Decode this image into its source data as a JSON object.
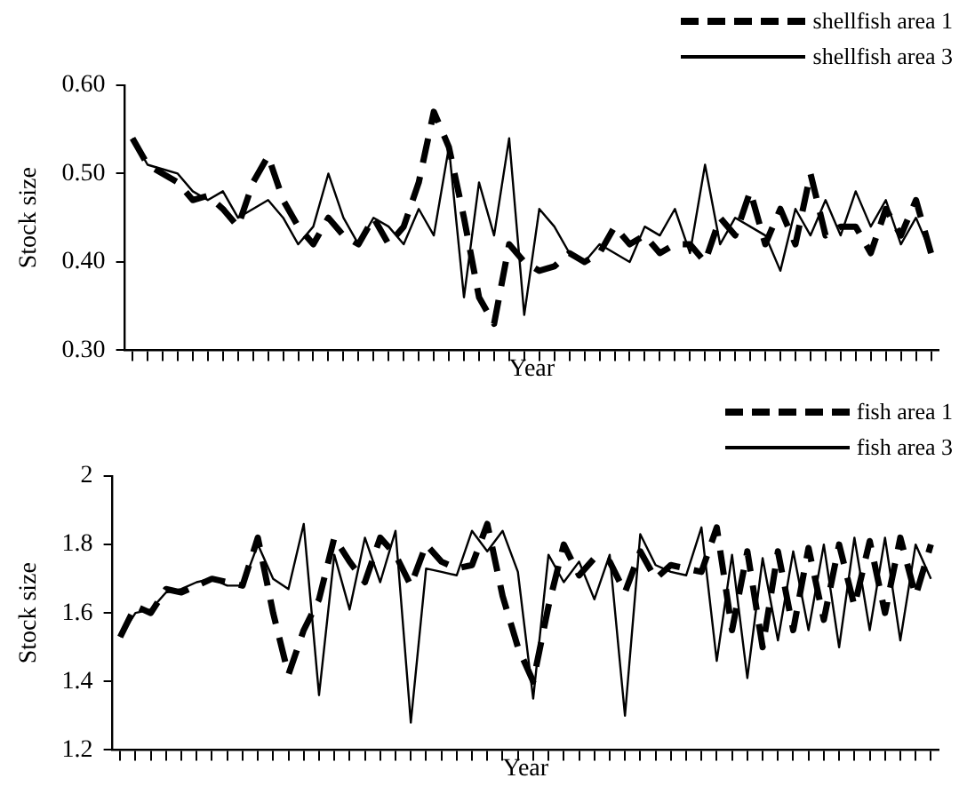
{
  "chart_data": [
    {
      "type": "line",
      "xlabel": "Year",
      "ylabel": "Stock size",
      "categories": [
        null,
        null,
        null,
        null,
        null,
        null,
        null,
        null,
        null,
        null,
        null,
        null,
        null,
        null,
        null,
        null,
        null,
        null,
        null,
        null,
        null,
        null,
        null,
        null,
        null,
        null,
        null,
        null,
        null,
        null,
        null,
        null,
        null,
        null,
        null,
        null,
        null,
        null,
        null,
        null,
        null,
        null,
        null,
        null,
        null,
        null,
        null,
        null,
        null,
        null,
        null,
        null,
        null,
        null
      ],
      "ylim": [
        0.3,
        0.6
      ],
      "yticks": [
        {
          "value": 0.3,
          "label": "0.30"
        },
        {
          "value": 0.4,
          "label": "0.40"
        },
        {
          "value": 0.5,
          "label": "0.50"
        },
        {
          "value": 0.6,
          "label": "0.60"
        }
      ],
      "tick_labels": "y",
      "legend": "top right",
      "marker": "none",
      "grid": false,
      "series": [
        {
          "name": "shellfish area 1",
          "color": "#000000",
          "line_style": "dashed",
          "values": [
            0.54,
            0.51,
            0.5,
            0.49,
            0.47,
            0.475,
            0.46,
            0.44,
            0.49,
            0.52,
            0.47,
            0.44,
            0.42,
            0.45,
            0.43,
            0.42,
            0.45,
            0.42,
            0.44,
            0.49,
            0.57,
            0.53,
            0.45,
            0.36,
            0.33,
            0.42,
            0.4,
            0.39,
            0.395,
            0.41,
            0.4,
            0.41,
            0.44,
            0.42,
            0.43,
            0.41,
            0.42,
            0.42,
            0.4,
            0.45,
            0.43,
            0.48,
            0.42,
            0.46,
            0.42,
            0.5,
            0.43,
            0.44,
            0.44,
            0.41,
            0.46,
            0.43,
            0.47,
            0.41
          ]
        },
        {
          "name": "shellfish area 3",
          "color": "#000000",
          "line_style": "solid",
          "values": [
            0.54,
            0.51,
            0.505,
            0.5,
            0.48,
            0.47,
            0.48,
            0.45,
            0.46,
            0.47,
            0.45,
            0.42,
            0.44,
            0.5,
            0.45,
            0.42,
            0.45,
            0.44,
            0.42,
            0.46,
            0.43,
            0.53,
            0.36,
            0.49,
            0.43,
            0.54,
            0.34,
            0.46,
            0.44,
            0.41,
            0.4,
            0.42,
            0.41,
            0.4,
            0.44,
            0.43,
            0.46,
            0.41,
            0.51,
            0.42,
            0.45,
            0.44,
            0.43,
            0.39,
            0.46,
            0.43,
            0.47,
            0.43,
            0.48,
            0.44,
            0.47,
            0.42,
            0.45,
            0.41
          ]
        }
      ]
    },
    {
      "type": "line",
      "xlabel": "Year",
      "ylabel": "Stock size",
      "categories": [
        null,
        null,
        null,
        null,
        null,
        null,
        null,
        null,
        null,
        null,
        null,
        null,
        null,
        null,
        null,
        null,
        null,
        null,
        null,
        null,
        null,
        null,
        null,
        null,
        null,
        null,
        null,
        null,
        null,
        null,
        null,
        null,
        null,
        null,
        null,
        null,
        null,
        null,
        null,
        null,
        null,
        null,
        null,
        null,
        null,
        null,
        null,
        null,
        null,
        null,
        null,
        null,
        null,
        null
      ],
      "ylim": [
        1.2,
        2
      ],
      "yticks": [
        1.2,
        1.4,
        1.6,
        1.8,
        2
      ],
      "tick_labels": "y",
      "legend": "top right",
      "marker": "none",
      "grid": false,
      "series": [
        {
          "name": "fish area 1",
          "color": "#000000",
          "line_style": "dashed",
          "values": [
            1.53,
            1.62,
            1.6,
            1.67,
            1.66,
            1.68,
            1.7,
            1.69,
            1.68,
            1.82,
            1.6,
            1.42,
            1.55,
            1.64,
            1.82,
            1.75,
            1.69,
            1.82,
            1.77,
            1.68,
            1.8,
            1.75,
            1.73,
            1.74,
            1.86,
            1.65,
            1.5,
            1.4,
            1.62,
            1.8,
            1.71,
            1.76,
            1.75,
            1.66,
            1.78,
            1.7,
            1.74,
            1.73,
            1.72,
            1.85,
            1.55,
            1.78,
            1.5,
            1.78,
            1.55,
            1.79,
            1.58,
            1.8,
            1.62,
            1.81,
            1.6,
            1.82,
            1.65,
            1.8
          ]
        },
        {
          "name": "fish area 3",
          "color": "#000000",
          "line_style": "solid",
          "values": [
            1.53,
            1.6,
            1.61,
            1.66,
            1.67,
            1.69,
            1.7,
            1.68,
            1.68,
            1.8,
            1.7,
            1.67,
            1.86,
            1.36,
            1.77,
            1.61,
            1.82,
            1.69,
            1.84,
            1.28,
            1.73,
            1.72,
            1.71,
            1.84,
            1.78,
            1.84,
            1.72,
            1.35,
            1.77,
            1.69,
            1.75,
            1.64,
            1.77,
            1.3,
            1.83,
            1.74,
            1.72,
            1.71,
            1.85,
            1.46,
            1.77,
            1.41,
            1.76,
            1.52,
            1.78,
            1.55,
            1.8,
            1.5,
            1.82,
            1.55,
            1.82,
            1.52,
            1.8,
            1.7
          ]
        }
      ]
    }
  ]
}
